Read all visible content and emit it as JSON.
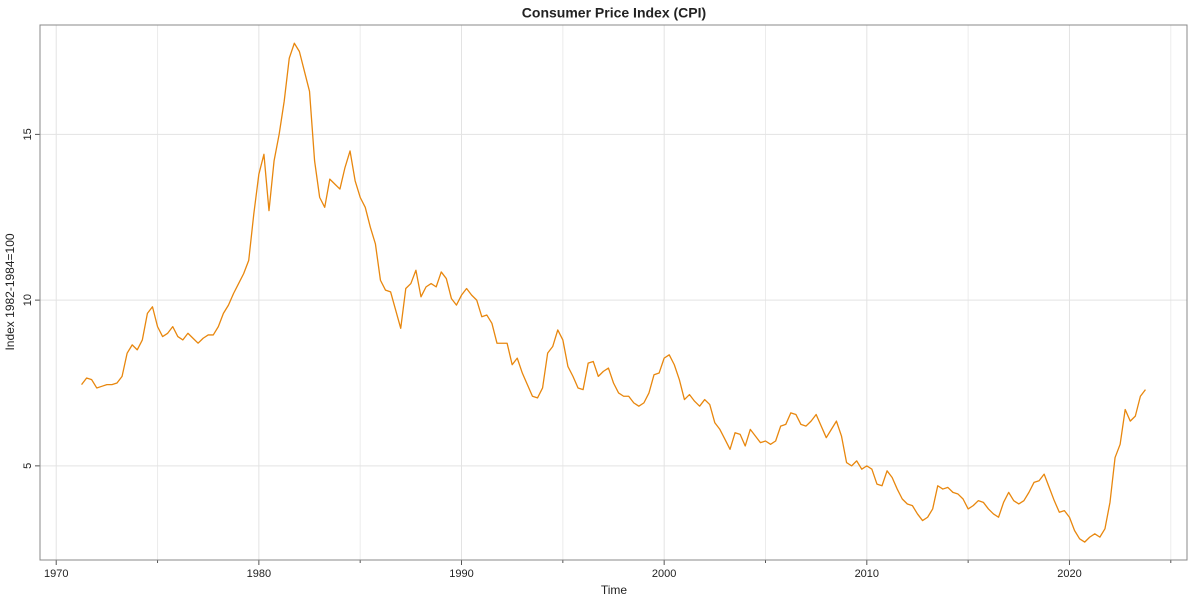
{
  "chart_data": {
    "type": "line",
    "title": "Consumer Price Index (CPI)",
    "x_label": "Time",
    "y_label": "Index 1982-1984=100",
    "xlim": [
      1969.2,
      2025.8
    ],
    "ylim": [
      2.16,
      18.3
    ],
    "xticks": [
      1970,
      1980,
      1990,
      2000,
      2010,
      2020
    ],
    "x_minor_ticks": [
      1975,
      1985,
      1995,
      2005,
      2015,
      2025
    ],
    "yticks": [
      5,
      10,
      15
    ],
    "grid": true,
    "series": [
      {
        "name": "CPI",
        "color": "#e8870e",
        "x": [
          1971.25,
          1971.5,
          1971.75,
          1972,
          1972.25,
          1972.5,
          1972.75,
          1973,
          1973.25,
          1973.5,
          1973.75,
          1974,
          1974.25,
          1974.5,
          1974.75,
          1975,
          1975.25,
          1975.5,
          1975.75,
          1976,
          1976.25,
          1976.5,
          1976.75,
          1977,
          1977.25,
          1977.5,
          1977.75,
          1978,
          1978.25,
          1978.5,
          1978.75,
          1979,
          1979.25,
          1979.5,
          1979.75,
          1980,
          1980.25,
          1980.5,
          1980.75,
          1981,
          1981.25,
          1981.5,
          1981.75,
          1982,
          1982.25,
          1982.5,
          1982.75,
          1983,
          1983.25,
          1983.5,
          1983.75,
          1984,
          1984.25,
          1984.5,
          1984.75,
          1985,
          1985.25,
          1985.5,
          1985.75,
          1986,
          1986.25,
          1986.5,
          1986.75,
          1987,
          1987.25,
          1987.5,
          1987.75,
          1988,
          1988.25,
          1988.5,
          1988.75,
          1989,
          1989.25,
          1989.5,
          1989.75,
          1990,
          1990.25,
          1990.5,
          1990.75,
          1991,
          1991.25,
          1991.5,
          1991.75,
          1992,
          1992.25,
          1992.5,
          1992.75,
          1993,
          1993.25,
          1993.5,
          1993.75,
          1994,
          1994.25,
          1994.5,
          1994.75,
          1995,
          1995.25,
          1995.5,
          1995.75,
          1996,
          1996.25,
          1996.5,
          1996.75,
          1997,
          1997.25,
          1997.5,
          1997.75,
          1998,
          1998.25,
          1998.5,
          1998.75,
          1999,
          1999.25,
          1999.5,
          1999.75,
          2000,
          2000.25,
          2000.5,
          2000.75,
          2001,
          2001.25,
          2001.5,
          2001.75,
          2002,
          2002.25,
          2002.5,
          2002.75,
          2003,
          2003.25,
          2003.5,
          2003.75,
          2004,
          2004.25,
          2004.5,
          2004.75,
          2005,
          2005.25,
          2005.5,
          2005.75,
          2006,
          2006.25,
          2006.5,
          2006.75,
          2007,
          2007.25,
          2007.5,
          2007.75,
          2008,
          2008.25,
          2008.5,
          2008.75,
          2009,
          2009.25,
          2009.5,
          2009.75,
          2010,
          2010.25,
          2010.5,
          2010.75,
          2011,
          2011.25,
          2011.5,
          2011.75,
          2012,
          2012.25,
          2012.5,
          2012.75,
          2013,
          2013.25,
          2013.5,
          2013.75,
          2014,
          2014.25,
          2014.5,
          2014.75,
          2015,
          2015.25,
          2015.5,
          2015.75,
          2016,
          2016.25,
          2016.5,
          2016.75,
          2017,
          2017.25,
          2017.5,
          2017.75,
          2018,
          2018.25,
          2018.5,
          2018.75,
          2019,
          2019.25,
          2019.5,
          2019.75,
          2020,
          2020.25,
          2020.5,
          2020.75,
          2021,
          2021.25,
          2021.5,
          2021.75,
          2022,
          2022.25,
          2022.5,
          2022.75,
          2023,
          2023.25,
          2023.5,
          2023.75
        ],
        "values": [
          7.45,
          7.65,
          7.6,
          7.35,
          7.4,
          7.45,
          7.45,
          7.5,
          7.7,
          8.4,
          8.65,
          8.5,
          8.8,
          9.6,
          9.8,
          9.2,
          8.9,
          9.0,
          9.2,
          8.9,
          8.8,
          9.0,
          8.85,
          8.7,
          8.85,
          8.95,
          8.95,
          9.2,
          9.6,
          9.85,
          10.2,
          10.5,
          10.8,
          11.2,
          12.6,
          13.8,
          14.4,
          12.7,
          14.2,
          15.0,
          16.0,
          17.3,
          17.75,
          17.5,
          16.9,
          16.3,
          14.2,
          13.1,
          12.8,
          13.65,
          13.5,
          13.35,
          14.0,
          14.5,
          13.6,
          13.1,
          12.8,
          12.2,
          11.7,
          10.6,
          10.3,
          10.25,
          9.7,
          9.15,
          10.35,
          10.5,
          10.9,
          10.1,
          10.4,
          10.5,
          10.4,
          10.85,
          10.65,
          10.05,
          9.85,
          10.15,
          10.35,
          10.15,
          10.0,
          9.5,
          9.55,
          9.3,
          8.7,
          8.7,
          8.7,
          8.05,
          8.25,
          7.8,
          7.45,
          7.1,
          7.05,
          7.35,
          8.4,
          8.6,
          9.1,
          8.8,
          8.0,
          7.7,
          7.35,
          7.3,
          8.1,
          8.15,
          7.7,
          7.85,
          7.95,
          7.5,
          7.2,
          7.1,
          7.1,
          6.9,
          6.8,
          6.9,
          7.2,
          7.75,
          7.8,
          8.25,
          8.35,
          8.05,
          7.6,
          7.0,
          7.15,
          6.95,
          6.8,
          7.0,
          6.85,
          6.3,
          6.1,
          5.8,
          5.5,
          6.0,
          5.95,
          5.6,
          6.1,
          5.9,
          5.7,
          5.75,
          5.65,
          5.75,
          6.2,
          6.25,
          6.6,
          6.55,
          6.25,
          6.2,
          6.35,
          6.55,
          6.2,
          5.85,
          6.1,
          6.35,
          5.9,
          5.1,
          5.0,
          5.15,
          4.9,
          5.0,
          4.9,
          4.45,
          4.4,
          4.85,
          4.65,
          4.3,
          4.0,
          3.85,
          3.8,
          3.55,
          3.35,
          3.45,
          3.7,
          4.4,
          4.3,
          4.35,
          4.2,
          4.15,
          4.0,
          3.7,
          3.8,
          3.95,
          3.9,
          3.7,
          3.55,
          3.45,
          3.9,
          4.2,
          3.95,
          3.85,
          3.95,
          4.2,
          4.5,
          4.55,
          4.75,
          4.35,
          3.95,
          3.6,
          3.65,
          3.45,
          3.05,
          2.8,
          2.7,
          2.85,
          2.95,
          2.85,
          3.1,
          3.9,
          5.25,
          5.65,
          6.7,
          6.35,
          6.5,
          7.1,
          7.3
        ]
      }
    ]
  }
}
